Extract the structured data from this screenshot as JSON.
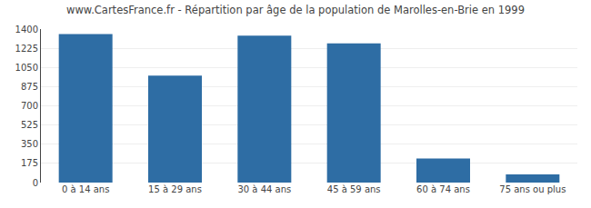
{
  "chart_data": {
    "type": "bar",
    "title": "www.CartesFrance.fr - Répartition par âge de la population de Marolles-en-Brie en 1999",
    "categories": [
      "0 à 14 ans",
      "15 à 29 ans",
      "30 à 44 ans",
      "45 à 59 ans",
      "60 à 74 ans",
      "75 ans ou plus"
    ],
    "values": [
      1355,
      975,
      1340,
      1270,
      220,
      75
    ],
    "color": "#2e6da4",
    "ylim": [
      0,
      1400
    ],
    "yticks": [
      0,
      175,
      350,
      525,
      700,
      875,
      1050,
      1225,
      1400
    ],
    "grid": true
  }
}
